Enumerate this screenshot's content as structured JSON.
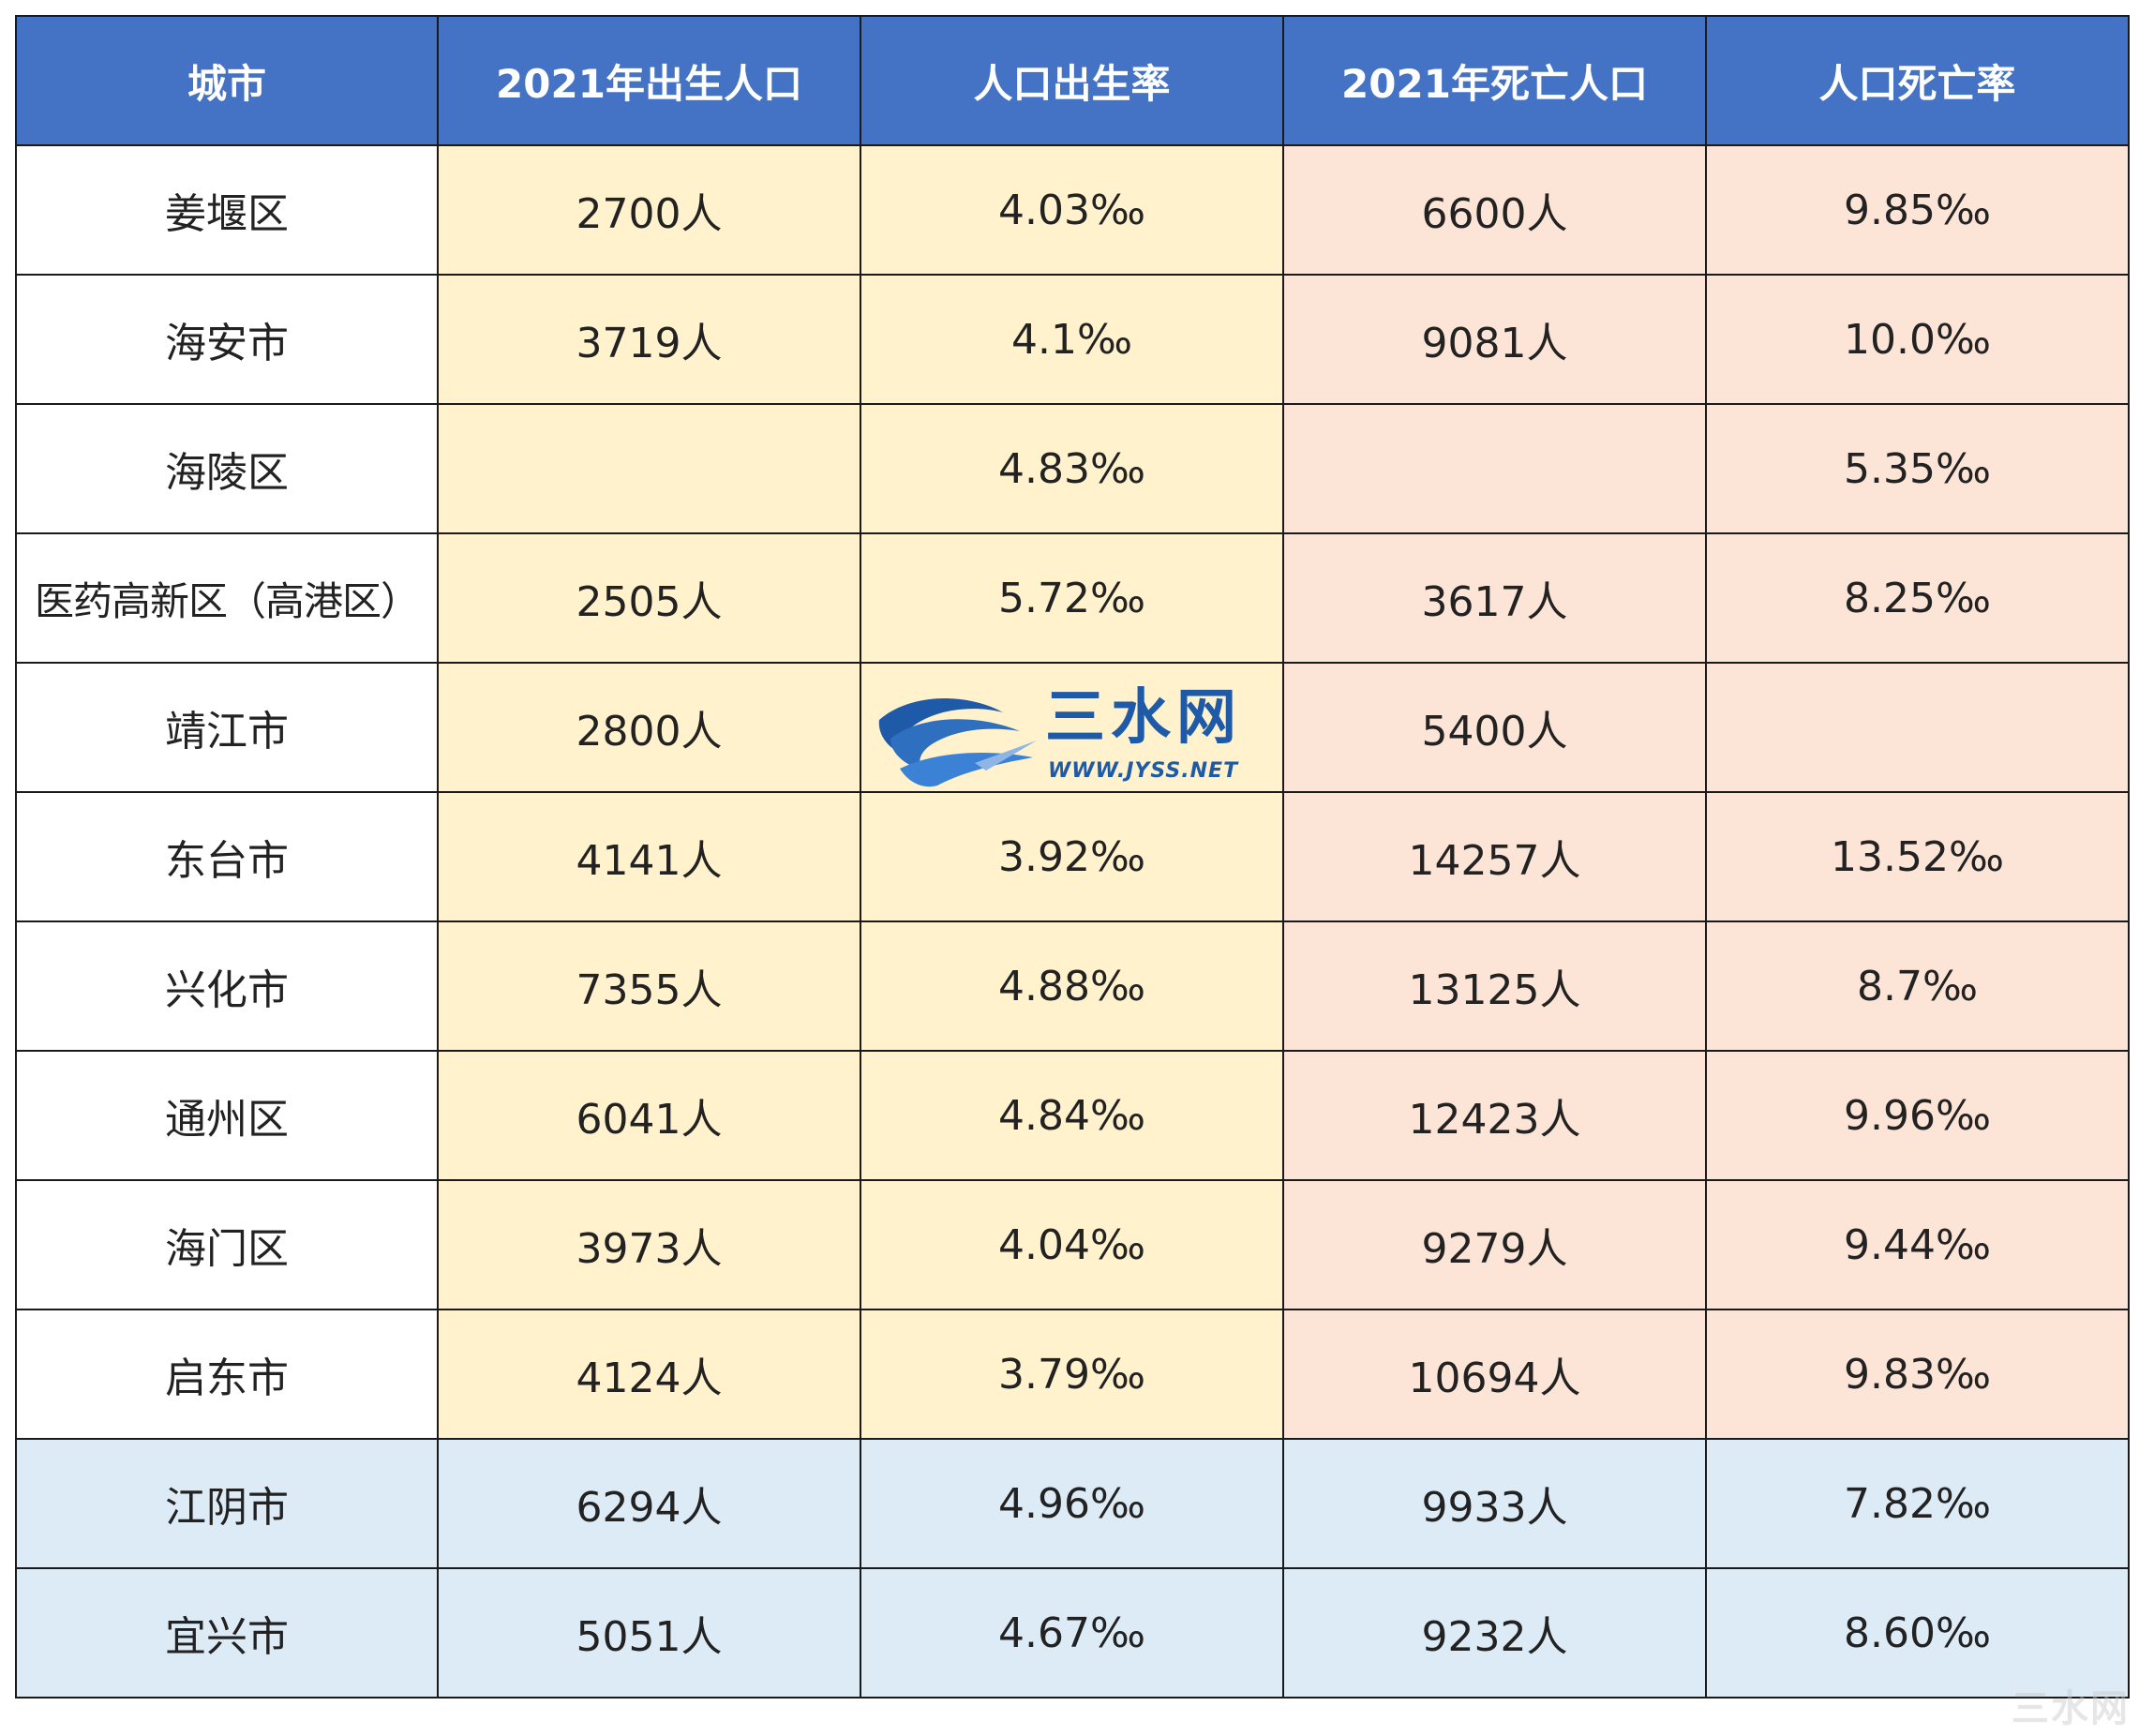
{
  "header": {
    "col_city": "城市",
    "col_births": "2021年出生人口",
    "col_birth_rate": "人口出生率",
    "col_deaths": "2021年死亡人口",
    "col_death_rate": "人口死亡率"
  },
  "rows": [
    {
      "city": "姜堰区",
      "births": "2700人",
      "birth_rate": "4.03‰",
      "deaths": "6600人",
      "death_rate": "9.85‰"
    },
    {
      "city": "海安市",
      "births": "3719人",
      "birth_rate": "4.1‰",
      "deaths": "9081人",
      "death_rate": "10.0‰"
    },
    {
      "city": "海陵区",
      "births": "",
      "birth_rate": "4.83‰",
      "deaths": "",
      "death_rate": "5.35‰"
    },
    {
      "city": "医药高新区（高港区）",
      "births": "2505人",
      "birth_rate": "5.72‰",
      "deaths": "3617人",
      "death_rate": "8.25‰"
    },
    {
      "city": "靖江市",
      "births": "2800人",
      "birth_rate": "",
      "deaths": "5400人",
      "death_rate": ""
    },
    {
      "city": "东台市",
      "births": "4141人",
      "birth_rate": "3.92‰",
      "deaths": "14257人",
      "death_rate": "13.52‰"
    },
    {
      "city": "兴化市",
      "births": "7355人",
      "birth_rate": "4.88‰",
      "deaths": "13125人",
      "death_rate": "8.7‰"
    },
    {
      "city": "通州区",
      "births": "6041人",
      "birth_rate": "4.84‰",
      "deaths": "12423人",
      "death_rate": "9.96‰"
    },
    {
      "city": "海门区",
      "births": "3973人",
      "birth_rate": "4.04‰",
      "deaths": "9279人",
      "death_rate": "9.44‰"
    },
    {
      "city": "启东市",
      "births": "4124人",
      "birth_rate": "3.79‰",
      "deaths": "10694人",
      "death_rate": "9.83‰"
    },
    {
      "city": "江阴市",
      "births": "6294人",
      "birth_rate": "4.96‰",
      "deaths": "9933人",
      "death_rate": "7.82‰"
    },
    {
      "city": "宜兴市",
      "births": "5051人",
      "birth_rate": "4.67‰",
      "deaths": "9232人",
      "death_rate": "8.60‰"
    }
  ],
  "watermark": {
    "name": "三水网",
    "url": "WWW.JYSS.NET",
    "corner": "三水网"
  },
  "colors": {
    "header_bg": "#4472c4",
    "birth_bg": "#fff2cc",
    "death_bg": "#fce4d6",
    "blue_row_bg": "#ddebf7",
    "watermark_blue": "#1e5aa8"
  }
}
